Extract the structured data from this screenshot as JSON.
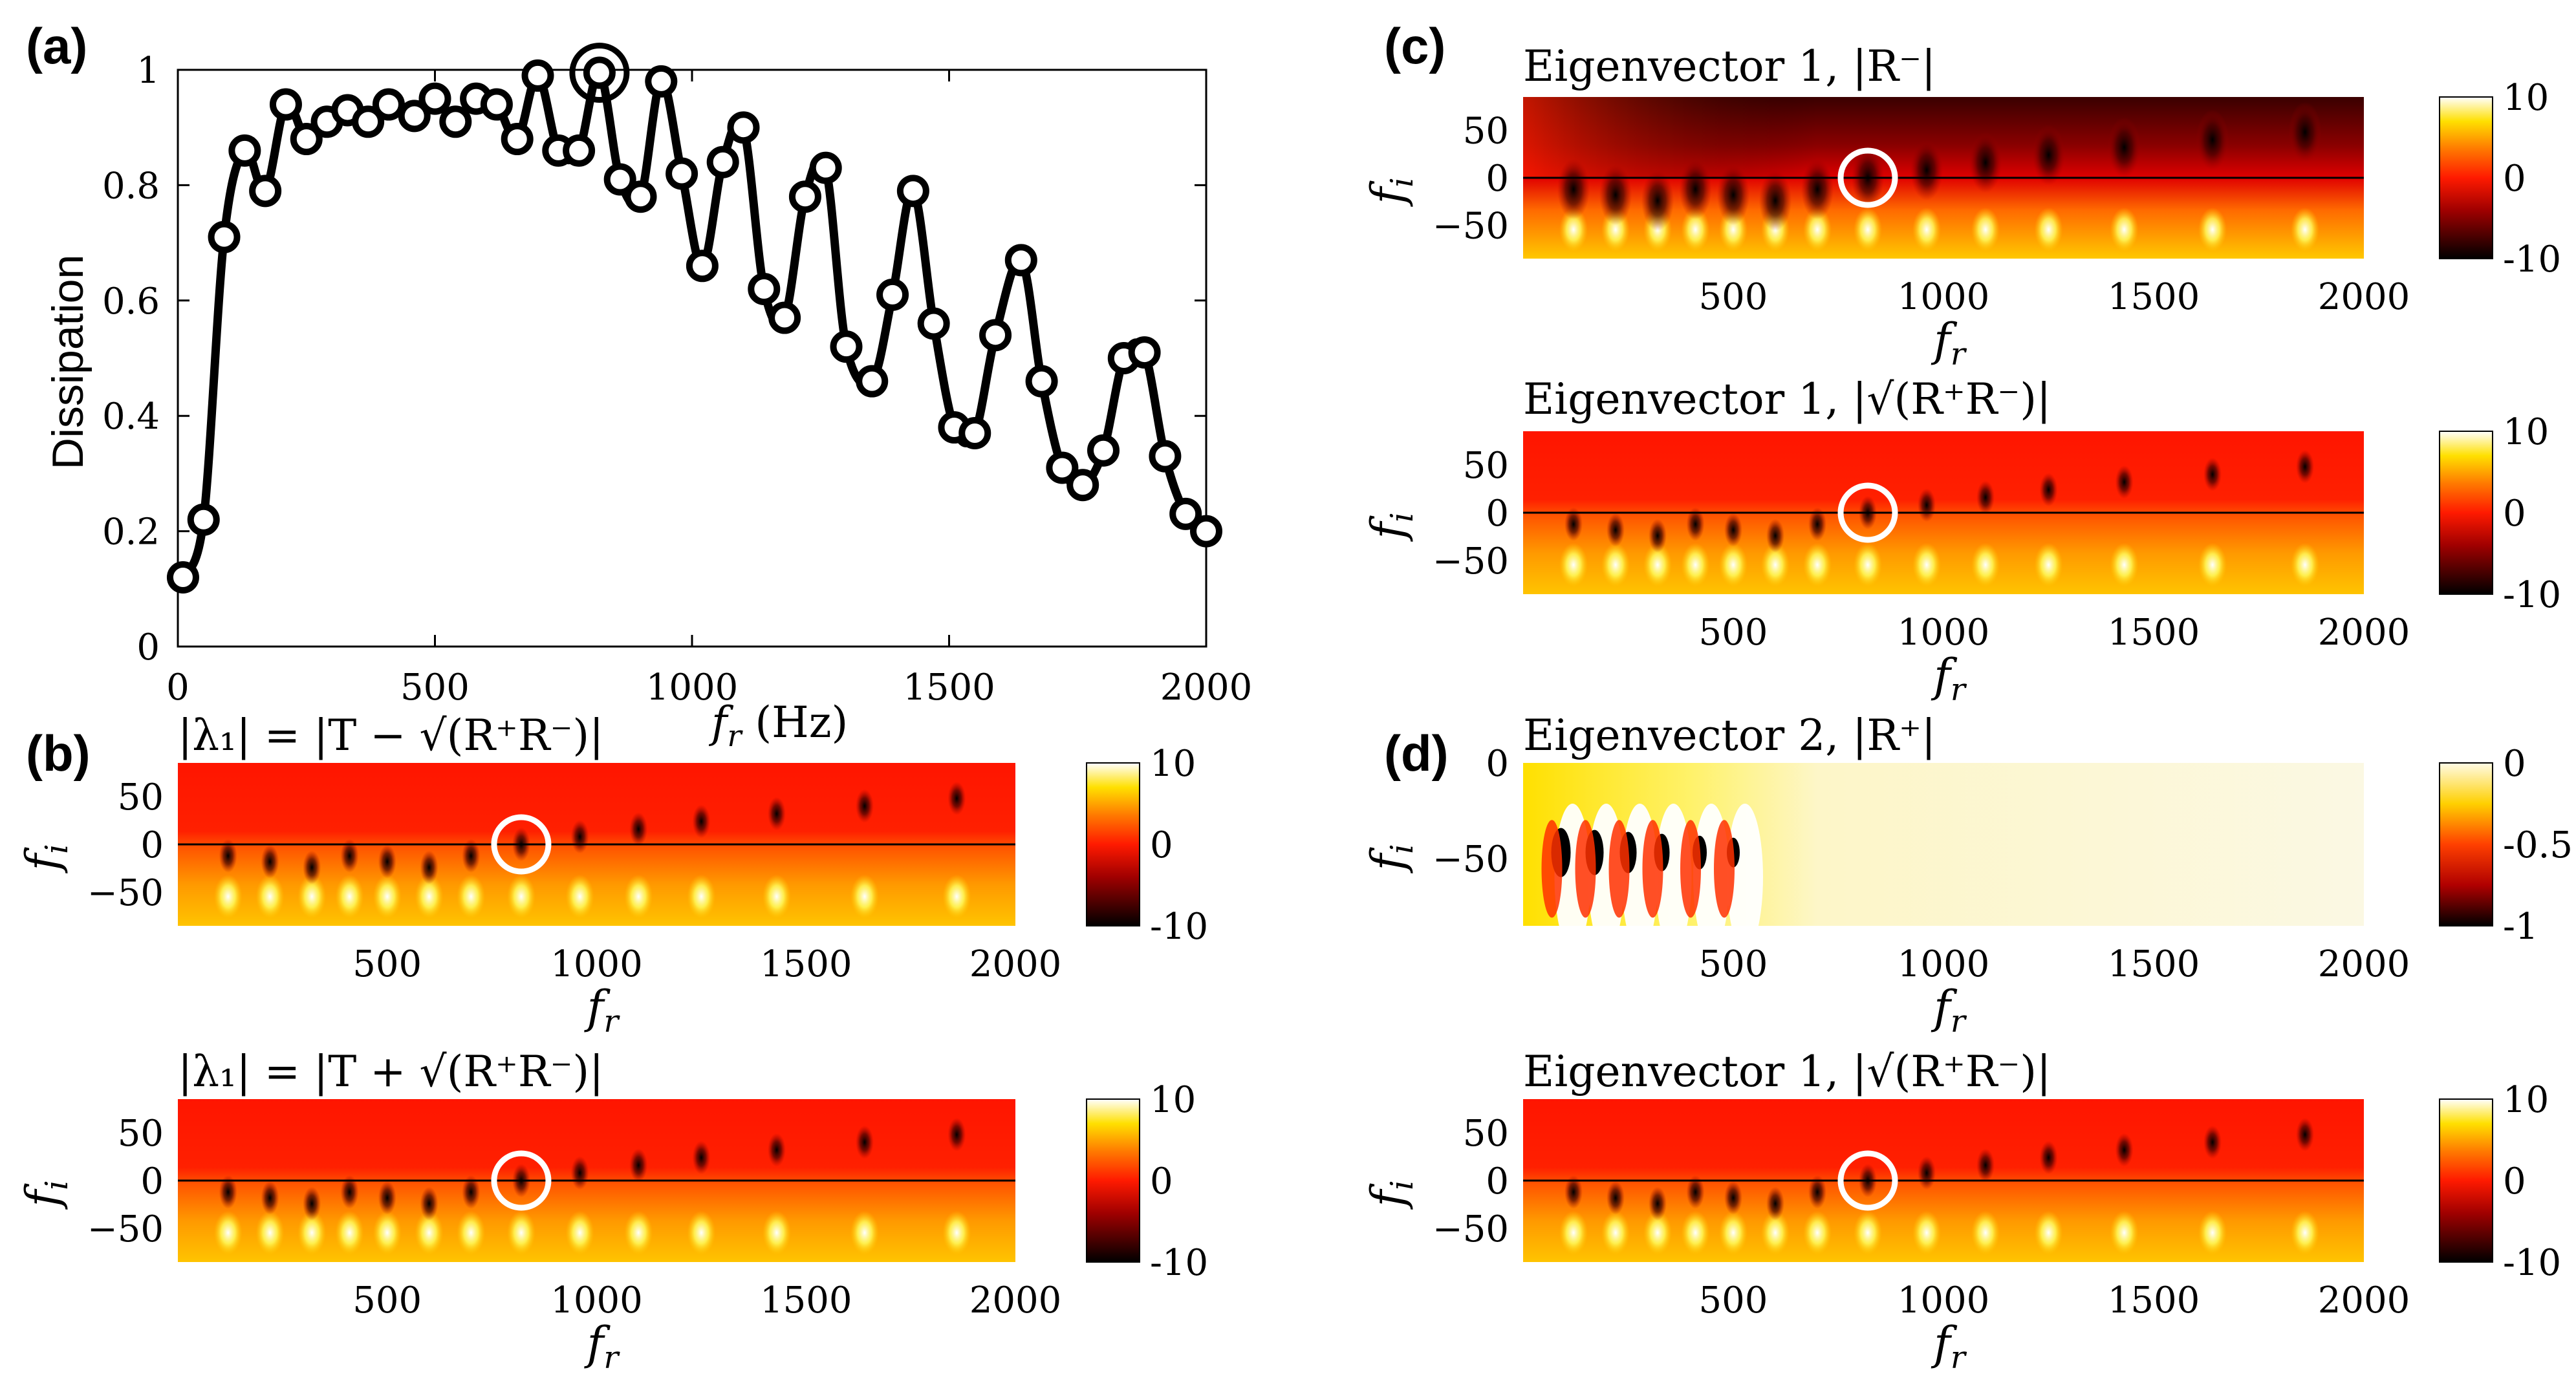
{
  "chart_data": [
    {
      "id": "a",
      "panel_label": "(a)",
      "type": "line",
      "title": "",
      "xlabel": "f_r (Hz)",
      "ylabel": "Dissipation",
      "xlim": [
        0,
        2000
      ],
      "ylim": [
        0,
        1
      ],
      "xticks": [
        "0",
        "500",
        "1000",
        "1500",
        "2000"
      ],
      "yticks": [
        "0",
        "0.2",
        "0.4",
        "0.6",
        "0.8",
        "1"
      ],
      "highlight_point": [
        820,
        0.995
      ],
      "series": [
        {
          "name": "markers",
          "x": [
            10,
            50,
            90,
            130,
            170,
            210,
            250,
            290,
            330,
            370,
            410,
            460,
            500,
            540,
            580,
            620,
            660,
            700,
            740,
            780,
            820,
            860,
            900,
            940,
            980,
            1020,
            1060,
            1100,
            1140,
            1180,
            1220,
            1260,
            1300,
            1350,
            1390,
            1430,
            1470,
            1510,
            1550,
            1590,
            1640,
            1680,
            1720,
            1760,
            1800,
            1840,
            1880,
            1920,
            1960,
            2000
          ],
          "y": [
            0.12,
            0.22,
            0.71,
            0.86,
            0.79,
            0.94,
            0.88,
            0.91,
            0.93,
            0.91,
            0.94,
            0.92,
            0.95,
            0.91,
            0.95,
            0.94,
            0.88,
            0.99,
            0.86,
            0.86,
            0.995,
            0.81,
            0.78,
            0.98,
            0.82,
            0.66,
            0.84,
            0.9,
            0.62,
            0.57,
            0.78,
            0.83,
            0.52,
            0.46,
            0.61,
            0.79,
            0.56,
            0.38,
            0.37,
            0.54,
            0.67,
            0.46,
            0.31,
            0.28,
            0.34,
            0.5,
            0.51,
            0.33,
            0.23,
            0.2
          ]
        }
      ]
    },
    {
      "id": "b1",
      "panel_label": "(b)",
      "type": "heatmap",
      "title": "|λ₁| = |T − √(R⁺R⁻)|",
      "xlabel": "f_r",
      "ylabel": "f_i",
      "xlim": [
        0,
        2000
      ],
      "ylim": [
        -85,
        85
      ],
      "xticks": [
        "500",
        "1000",
        "1500",
        "2000"
      ],
      "yticks": [
        "50",
        "0",
        "−50"
      ],
      "colorbar_ticks": [
        "10",
        "0",
        "-10"
      ],
      "circle": [
        820,
        0
      ],
      "dip_fr": [
        120,
        220,
        320,
        410,
        500,
        600,
        700,
        820,
        960,
        1100,
        1250,
        1430,
        1640,
        1860
      ]
    },
    {
      "id": "b2",
      "type": "heatmap",
      "title": "|λ₁| = |T + √(R⁺R⁻)|",
      "xlabel": "f_r",
      "ylabel": "f_i",
      "xlim": [
        0,
        2000
      ],
      "ylim": [
        -85,
        85
      ],
      "xticks": [
        "500",
        "1000",
        "1500",
        "2000"
      ],
      "yticks": [
        "50",
        "0",
        "−50"
      ],
      "colorbar_ticks": [
        "10",
        "0",
        "-10"
      ],
      "circle": [
        820,
        0
      ],
      "dip_fr": [
        120,
        220,
        320,
        410,
        500,
        600,
        700,
        820,
        960,
        1100,
        1250,
        1430,
        1640,
        1860
      ]
    },
    {
      "id": "c1",
      "panel_label": "(c)",
      "type": "heatmap",
      "title": "Eigenvector 1, |R⁻|",
      "xlabel": "f_r",
      "ylabel": "f_i",
      "xlim": [
        0,
        2000
      ],
      "ylim": [
        -85,
        85
      ],
      "xticks": [
        "500",
        "1000",
        "1500",
        "2000"
      ],
      "yticks": [
        "50",
        "0",
        "−50"
      ],
      "colorbar_ticks": [
        "10",
        "0",
        "-10"
      ],
      "circle": [
        820,
        0
      ],
      "dip_fr": [
        120,
        220,
        320,
        410,
        500,
        600,
        700,
        820,
        960,
        1100,
        1250,
        1430,
        1640,
        1860
      ]
    },
    {
      "id": "c2",
      "type": "heatmap",
      "title": "Eigenvector 1, |√(R⁺R⁻)|",
      "xlabel": "f_r",
      "ylabel": "f_i",
      "xlim": [
        0,
        2000
      ],
      "ylim": [
        -85,
        85
      ],
      "xticks": [
        "500",
        "1000",
        "1500",
        "2000"
      ],
      "yticks": [
        "50",
        "0",
        "−50"
      ],
      "colorbar_ticks": [
        "10",
        "0",
        "-10"
      ],
      "circle": [
        820,
        0
      ],
      "dip_fr": [
        120,
        220,
        320,
        410,
        500,
        600,
        700,
        820,
        960,
        1100,
        1250,
        1430,
        1640,
        1860
      ]
    },
    {
      "id": "d1",
      "panel_label": "(d)",
      "type": "heatmap",
      "title": "Eigenvector 2, |R⁺|",
      "xlabel": "f_r",
      "ylabel": "f_i",
      "xlim": [
        0,
        2000
      ],
      "ylim": [
        -85,
        0
      ],
      "xticks": [
        "500",
        "1000",
        "1500",
        "2000"
      ],
      "yticks": [
        "0",
        "−50"
      ],
      "colorbar_ticks": [
        "0",
        "-0.5",
        "-1"
      ],
      "dip_fr": [
        90,
        170,
        250,
        330,
        420,
        500
      ]
    },
    {
      "id": "d2",
      "type": "heatmap",
      "title": "Eigenvector 1, |√(R⁺R⁻)|",
      "xlabel": "f_r",
      "ylabel": "f_i",
      "xlim": [
        0,
        2000
      ],
      "ylim": [
        -85,
        85
      ],
      "xticks": [
        "500",
        "1000",
        "1500",
        "2000"
      ],
      "yticks": [
        "50",
        "0",
        "−50"
      ],
      "colorbar_ticks": [
        "10",
        "0",
        "-10"
      ],
      "circle": [
        820,
        0
      ],
      "dip_fr": [
        120,
        220,
        320,
        410,
        500,
        600,
        700,
        820,
        960,
        1100,
        1250,
        1430,
        1640,
        1860
      ]
    }
  ],
  "colors": {
    "hot_dark": "#000000",
    "hot_red": "#ff1a00",
    "hot_orange": "#ff6a00",
    "hot_yellow": "#ffd200",
    "hot_white": "#ffffff",
    "pale": "#fbf8e3",
    "line": "#000000"
  }
}
